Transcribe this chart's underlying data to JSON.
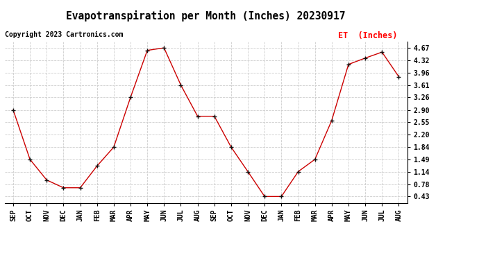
{
  "title": "Evapotranspiration per Month (Inches) 20230917",
  "legend_label": "ET  (Inches)",
  "copyright": "Copyright 2023 Cartronics.com",
  "months": [
    "SEP",
    "OCT",
    "NOV",
    "DEC",
    "JAN",
    "FEB",
    "MAR",
    "APR",
    "MAY",
    "JUN",
    "JUL",
    "AUG",
    "SEP",
    "OCT",
    "NOV",
    "DEC",
    "JAN",
    "FEB",
    "MAR",
    "APR",
    "MAY",
    "JUN",
    "JUL",
    "AUG"
  ],
  "values": [
    2.9,
    1.49,
    0.9,
    0.68,
    0.68,
    1.3,
    1.84,
    3.26,
    4.6,
    4.67,
    3.61,
    2.72,
    2.72,
    1.84,
    1.14,
    0.43,
    0.43,
    1.14,
    1.49,
    2.6,
    4.2,
    4.38,
    4.55,
    3.85
  ],
  "yticks": [
    0.43,
    0.78,
    1.14,
    1.49,
    1.84,
    2.2,
    2.55,
    2.9,
    3.26,
    3.61,
    3.96,
    4.32,
    4.67
  ],
  "ymin": 0.25,
  "ymax": 4.85,
  "line_color": "#cc0000",
  "marker_color": "#111111",
  "grid_color": "#cccccc",
  "background_color": "#ffffff",
  "title_fontsize": 10.5,
  "axis_fontsize": 7,
  "legend_fontsize": 8.5,
  "copyright_fontsize": 7
}
